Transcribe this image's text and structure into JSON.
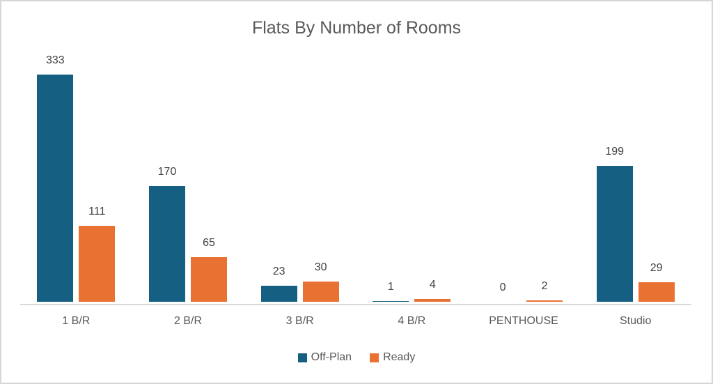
{
  "title": "Flats By Number of Rooms",
  "colors": {
    "off_plan": "#156082",
    "ready": "#E97132",
    "axis_line": "#D9D9D9",
    "title_text": "#595959",
    "data_label_text": "#404040",
    "category_text": "#595959",
    "frame_border": "#D6D6D6",
    "background": "#FFFFFF"
  },
  "chart_data": {
    "type": "bar",
    "title": "Flats By Number of Rooms",
    "categories": [
      "1 B/R",
      "2 B/R",
      "3 B/R",
      "4 B/R",
      "PENTHOUSE",
      "Studio"
    ],
    "series": [
      {
        "name": "Off-Plan",
        "color_key": "off_plan",
        "values": [
          333,
          170,
          23,
          1,
          0,
          199
        ]
      },
      {
        "name": "Ready",
        "color_key": "ready",
        "values": [
          111,
          65,
          30,
          4,
          2,
          29
        ]
      }
    ],
    "xlabel": "",
    "ylabel": "",
    "ylim": [
      0,
      340
    ],
    "grid": false,
    "data_labels": true,
    "legend_position": "bottom"
  }
}
